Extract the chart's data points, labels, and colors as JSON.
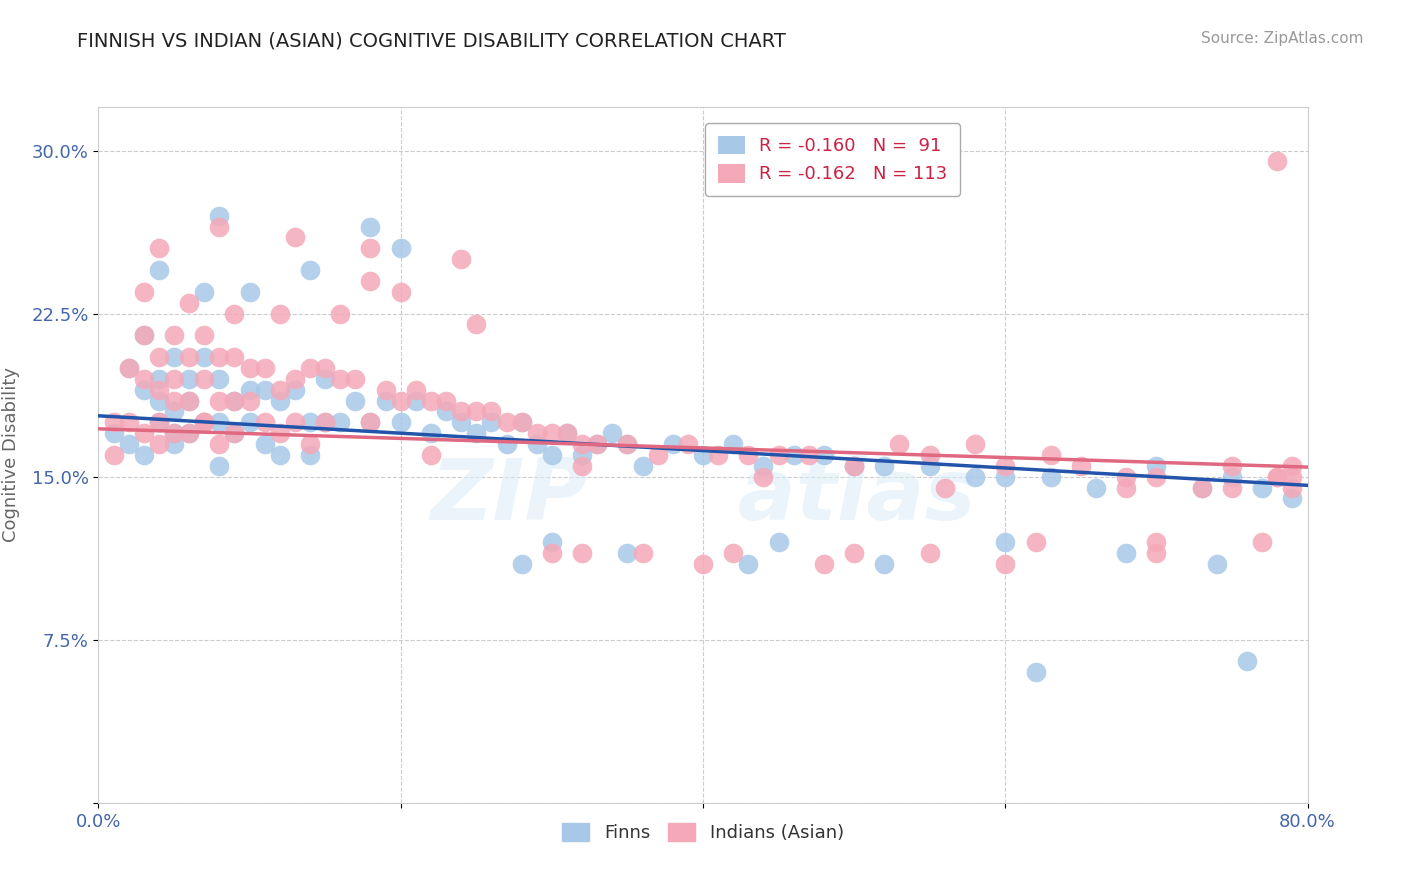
{
  "title": "FINNISH VS INDIAN (ASIAN) COGNITIVE DISABILITY CORRELATION CHART",
  "source": "Source: ZipAtlas.com",
  "ylabel": "Cognitive Disability",
  "xlabel": "",
  "xlim": [
    0.0,
    0.8
  ],
  "ylim": [
    0.0,
    0.32
  ],
  "yticks": [
    0.0,
    0.075,
    0.15,
    0.225,
    0.3
  ],
  "ytick_labels": [
    "",
    "7.5%",
    "15.0%",
    "22.5%",
    "30.0%"
  ],
  "xticks": [
    0.0,
    0.2,
    0.4,
    0.6,
    0.8
  ],
  "xtick_labels": [
    "0.0%",
    "",
    "",
    "",
    "80.0%"
  ],
  "finns_color": "#a8c8e8",
  "indians_color": "#f4a8b8",
  "finn_line_color": "#2255aa",
  "indian_line_color": "#e06880",
  "R_finn": -0.16,
  "N_finn": 91,
  "R_indian": -0.162,
  "N_indian": 113,
  "legend_R_color": "#cc2244",
  "background_color": "#ffffff",
  "grid_color": "#cccccc",
  "title_color": "#222222",
  "axis_color": "#4466aa",
  "finn_intercept": 0.178,
  "finn_slope": -0.04,
  "indian_intercept": 0.172,
  "indian_slope": -0.022,
  "finns_x": [
    0.01,
    0.02,
    0.02,
    0.03,
    0.03,
    0.03,
    0.04,
    0.04,
    0.04,
    0.05,
    0.05,
    0.05,
    0.05,
    0.06,
    0.06,
    0.06,
    0.07,
    0.07,
    0.08,
    0.08,
    0.08,
    0.09,
    0.09,
    0.1,
    0.1,
    0.11,
    0.11,
    0.12,
    0.12,
    0.13,
    0.14,
    0.14,
    0.15,
    0.15,
    0.16,
    0.17,
    0.18,
    0.19,
    0.2,
    0.21,
    0.22,
    0.23,
    0.24,
    0.25,
    0.26,
    0.27,
    0.28,
    0.29,
    0.3,
    0.31,
    0.32,
    0.33,
    0.34,
    0.35,
    0.36,
    0.38,
    0.4,
    0.42,
    0.44,
    0.46,
    0.48,
    0.5,
    0.52,
    0.55,
    0.58,
    0.6,
    0.63,
    0.66,
    0.7,
    0.73,
    0.75,
    0.77,
    0.79,
    0.04,
    0.07,
    0.1,
    0.14,
    0.2,
    0.28,
    0.35,
    0.43,
    0.52,
    0.6,
    0.68,
    0.74,
    0.08,
    0.18,
    0.3,
    0.45,
    0.62,
    0.76
  ],
  "finns_y": [
    0.17,
    0.2,
    0.165,
    0.215,
    0.19,
    0.16,
    0.195,
    0.185,
    0.175,
    0.205,
    0.18,
    0.17,
    0.165,
    0.195,
    0.185,
    0.17,
    0.205,
    0.175,
    0.195,
    0.175,
    0.155,
    0.185,
    0.17,
    0.19,
    0.175,
    0.19,
    0.165,
    0.185,
    0.16,
    0.19,
    0.175,
    0.16,
    0.195,
    0.175,
    0.175,
    0.185,
    0.175,
    0.185,
    0.175,
    0.185,
    0.17,
    0.18,
    0.175,
    0.17,
    0.175,
    0.165,
    0.175,
    0.165,
    0.16,
    0.17,
    0.16,
    0.165,
    0.17,
    0.165,
    0.155,
    0.165,
    0.16,
    0.165,
    0.155,
    0.16,
    0.16,
    0.155,
    0.155,
    0.155,
    0.15,
    0.15,
    0.15,
    0.145,
    0.155,
    0.145,
    0.15,
    0.145,
    0.14,
    0.245,
    0.235,
    0.235,
    0.245,
    0.255,
    0.11,
    0.115,
    0.11,
    0.11,
    0.12,
    0.115,
    0.11,
    0.27,
    0.265,
    0.12,
    0.12,
    0.06,
    0.065
  ],
  "indians_x": [
    0.01,
    0.01,
    0.02,
    0.02,
    0.03,
    0.03,
    0.03,
    0.04,
    0.04,
    0.04,
    0.04,
    0.05,
    0.05,
    0.05,
    0.05,
    0.06,
    0.06,
    0.06,
    0.07,
    0.07,
    0.07,
    0.08,
    0.08,
    0.08,
    0.09,
    0.09,
    0.09,
    0.1,
    0.1,
    0.11,
    0.11,
    0.12,
    0.12,
    0.13,
    0.13,
    0.14,
    0.15,
    0.15,
    0.16,
    0.17,
    0.18,
    0.18,
    0.19,
    0.2,
    0.21,
    0.22,
    0.23,
    0.24,
    0.25,
    0.26,
    0.27,
    0.28,
    0.29,
    0.3,
    0.31,
    0.32,
    0.33,
    0.35,
    0.37,
    0.39,
    0.41,
    0.43,
    0.45,
    0.47,
    0.5,
    0.53,
    0.55,
    0.58,
    0.6,
    0.63,
    0.65,
    0.68,
    0.7,
    0.73,
    0.75,
    0.78,
    0.03,
    0.06,
    0.09,
    0.12,
    0.16,
    0.2,
    0.25,
    0.3,
    0.36,
    0.42,
    0.48,
    0.55,
    0.62,
    0.7,
    0.77,
    0.04,
    0.08,
    0.13,
    0.18,
    0.24,
    0.32,
    0.4,
    0.5,
    0.6,
    0.7,
    0.78,
    0.07,
    0.14,
    0.22,
    0.32,
    0.44,
    0.56,
    0.68,
    0.79,
    0.75,
    0.79,
    0.78,
    0.79
  ],
  "indians_y": [
    0.175,
    0.16,
    0.2,
    0.175,
    0.215,
    0.195,
    0.17,
    0.205,
    0.19,
    0.175,
    0.165,
    0.215,
    0.195,
    0.185,
    0.17,
    0.205,
    0.185,
    0.17,
    0.215,
    0.195,
    0.175,
    0.205,
    0.185,
    0.165,
    0.205,
    0.185,
    0.17,
    0.2,
    0.185,
    0.2,
    0.175,
    0.19,
    0.17,
    0.195,
    0.175,
    0.2,
    0.2,
    0.175,
    0.195,
    0.195,
    0.24,
    0.175,
    0.19,
    0.185,
    0.19,
    0.185,
    0.185,
    0.18,
    0.18,
    0.18,
    0.175,
    0.175,
    0.17,
    0.17,
    0.17,
    0.165,
    0.165,
    0.165,
    0.16,
    0.165,
    0.16,
    0.16,
    0.16,
    0.16,
    0.155,
    0.165,
    0.16,
    0.165,
    0.155,
    0.16,
    0.155,
    0.15,
    0.15,
    0.145,
    0.145,
    0.15,
    0.235,
    0.23,
    0.225,
    0.225,
    0.225,
    0.235,
    0.22,
    0.115,
    0.115,
    0.115,
    0.11,
    0.115,
    0.12,
    0.115,
    0.12,
    0.255,
    0.265,
    0.26,
    0.255,
    0.25,
    0.115,
    0.11,
    0.115,
    0.11,
    0.12,
    0.295,
    0.175,
    0.165,
    0.16,
    0.155,
    0.15,
    0.145,
    0.145,
    0.15,
    0.155,
    0.155,
    0.15,
    0.145
  ]
}
